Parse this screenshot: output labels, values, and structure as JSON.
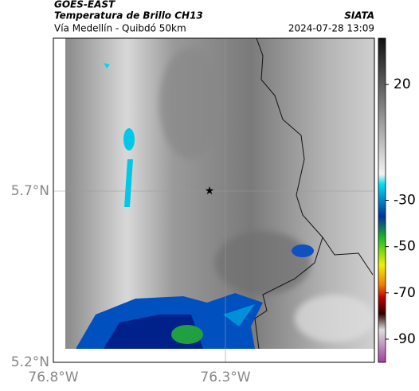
{
  "header": {
    "source": "GOES-EAST",
    "title": "Temperatura de Brillo CH13",
    "agency": "SIATA",
    "subtitle": "Vía Medellín - Quibdó 50km",
    "timestamp": "2024-07-28 13:09"
  },
  "map": {
    "lat_labels": [
      "5.7°N",
      "5.2°N"
    ],
    "lon_labels": [
      "76.8°W",
      "76.3°W"
    ]
  },
  "colorbar": {
    "lim": [
      -100,
      40
    ],
    "ticks": [
      20,
      -30,
      -50,
      -70,
      -90
    ]
  }
}
